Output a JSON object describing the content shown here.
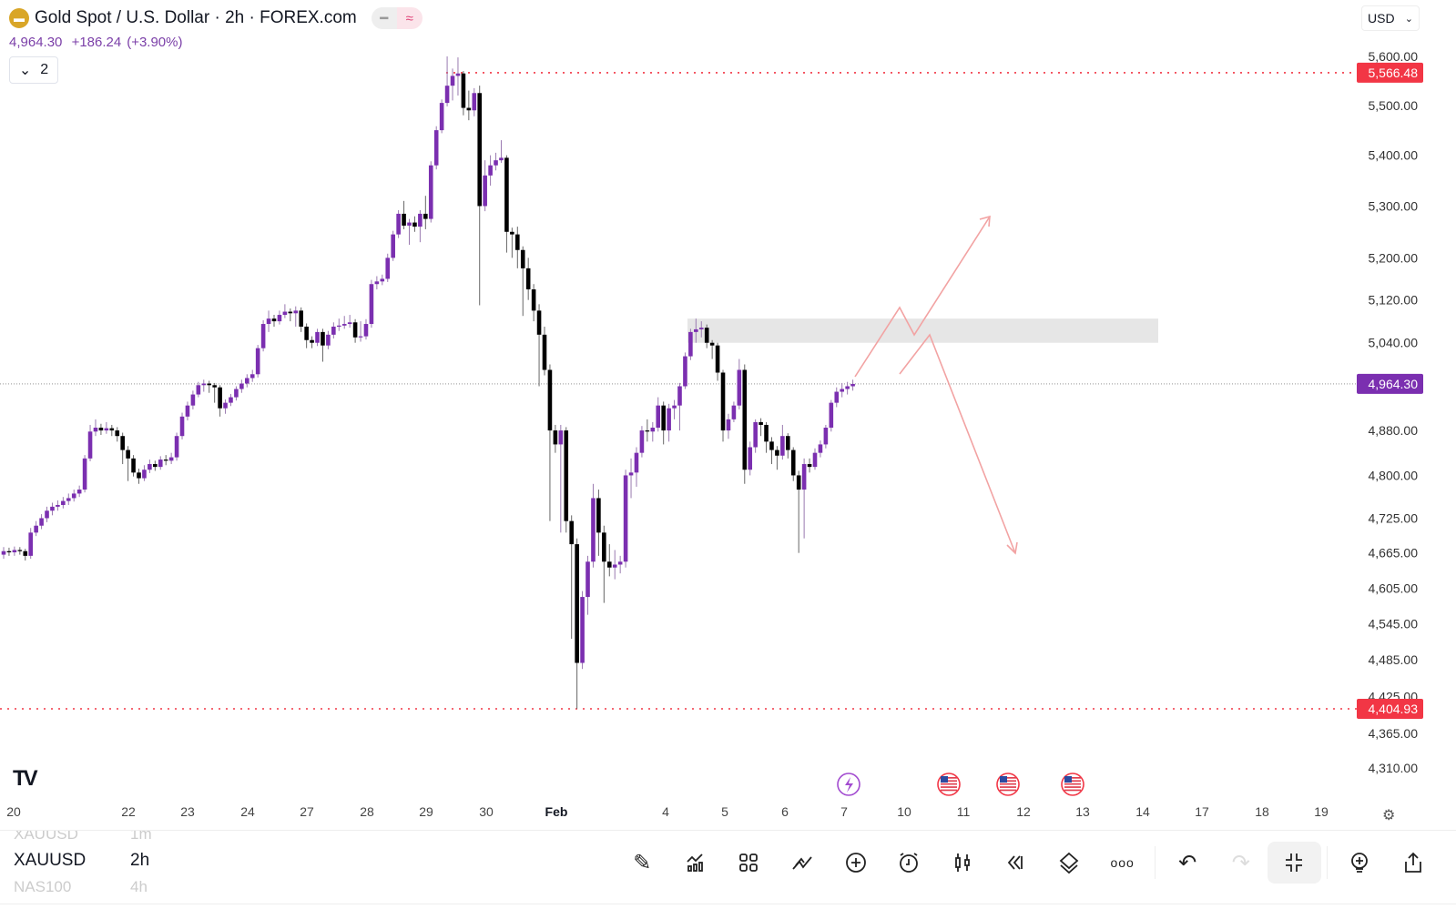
{
  "header": {
    "title": "Gold Spot / U.S. Dollar · 2h · FOREX.com",
    "last_price": "4,964.30",
    "change": "+186.24",
    "change_pct": "(+3.90%)",
    "indicators_collapsed_count": "2",
    "currency": "USD"
  },
  "price_axis": {
    "ticks": [
      "5,600.00",
      "5,500.00",
      "5,400.00",
      "5,300.00",
      "5,200.00",
      "5,120.00",
      "5,040.00",
      "4,880.00",
      "4,800.00",
      "4,725.00",
      "4,665.00",
      "4,605.00",
      "4,545.00",
      "4,485.00",
      "4,425.00",
      "4,365.00",
      "4,310.00"
    ],
    "scale": "log",
    "high_marker": "5,566.48",
    "low_marker": "4,404.93",
    "current_marker": "4,964.30"
  },
  "time_axis": {
    "ticks": [
      "20",
      "22",
      "23",
      "24",
      "27",
      "28",
      "29",
      "30",
      "Feb",
      "4",
      "5",
      "6",
      "7",
      "10",
      "11",
      "12",
      "13",
      "14",
      "17",
      "18",
      "19"
    ]
  },
  "colors": {
    "up": "#7b2fb0",
    "down": "#000000",
    "marker_red": "#f23645",
    "marker_current": "#7b2fb0",
    "drawing": "#f2a3a3",
    "zone": "#e6e6e6"
  },
  "chart_data": {
    "type": "candlestick",
    "symbol": "XAUUSD",
    "interval": "2h",
    "ohlc": [
      [
        4662,
        4675,
        4655,
        4668
      ],
      [
        4668,
        4674,
        4660,
        4666
      ],
      [
        4666,
        4676,
        4660,
        4670
      ],
      [
        4670,
        4675,
        4662,
        4668
      ],
      [
        4668,
        4672,
        4652,
        4660
      ],
      [
        4660,
        4708,
        4655,
        4700
      ],
      [
        4700,
        4720,
        4694,
        4712
      ],
      [
        4712,
        4732,
        4706,
        4725
      ],
      [
        4725,
        4745,
        4718,
        4738
      ],
      [
        4738,
        4752,
        4730,
        4745
      ],
      [
        4745,
        4756,
        4738,
        4748
      ],
      [
        4748,
        4762,
        4742,
        4755
      ],
      [
        4755,
        4768,
        4748,
        4760
      ],
      [
        4760,
        4775,
        4754,
        4768
      ],
      [
        4768,
        4782,
        4762,
        4775
      ],
      [
        4775,
        4836,
        4770,
        4830
      ],
      [
        4830,
        4890,
        4825,
        4878
      ],
      [
        4878,
        4900,
        4870,
        4885
      ],
      [
        4885,
        4892,
        4872,
        4880
      ],
      [
        4880,
        4895,
        4874,
        4884
      ],
      [
        4884,
        4890,
        4870,
        4880
      ],
      [
        4880,
        4886,
        4860,
        4870
      ],
      [
        4870,
        4876,
        4820,
        4845
      ],
      [
        4845,
        4852,
        4790,
        4830
      ],
      [
        4830,
        4836,
        4798,
        4805
      ],
      [
        4805,
        4812,
        4785,
        4795
      ],
      [
        4795,
        4818,
        4790,
        4810
      ],
      [
        4810,
        4828,
        4804,
        4820
      ],
      [
        4820,
        4826,
        4808,
        4815
      ],
      [
        4815,
        4834,
        4810,
        4828
      ],
      [
        4828,
        4836,
        4818,
        4826
      ],
      [
        4826,
        4840,
        4820,
        4832
      ],
      [
        4832,
        4876,
        4826,
        4870
      ],
      [
        4870,
        4912,
        4864,
        4905
      ],
      [
        4905,
        4932,
        4898,
        4925
      ],
      [
        4925,
        4952,
        4918,
        4945
      ],
      [
        4945,
        4968,
        4940,
        4962
      ],
      [
        4962,
        4972,
        4950,
        4965
      ],
      [
        4965,
        4970,
        4948,
        4962
      ],
      [
        4962,
        4966,
        4930,
        4958
      ],
      [
        4958,
        4962,
        4905,
        4920
      ],
      [
        4920,
        4936,
        4910,
        4930
      ],
      [
        4930,
        4946,
        4924,
        4940
      ],
      [
        4940,
        4960,
        4934,
        4955
      ],
      [
        4955,
        4972,
        4948,
        4965
      ],
      [
        4965,
        4982,
        4958,
        4975
      ],
      [
        4975,
        4990,
        4968,
        4982
      ],
      [
        4982,
        5036,
        4976,
        5030
      ],
      [
        5030,
        5082,
        5024,
        5075
      ],
      [
        5075,
        5100,
        5060,
        5085
      ],
      [
        5085,
        5092,
        5070,
        5080
      ],
      [
        5080,
        5100,
        5074,
        5092
      ],
      [
        5092,
        5112,
        5086,
        5098
      ],
      [
        5098,
        5104,
        5080,
        5095
      ],
      [
        5095,
        5108,
        5070,
        5100
      ],
      [
        5100,
        5106,
        5060,
        5070
      ],
      [
        5070,
        5076,
        5030,
        5045
      ],
      [
        5045,
        5052,
        5030,
        5040
      ],
      [
        5040,
        5066,
        5034,
        5060
      ],
      [
        5060,
        5066,
        5005,
        5035
      ],
      [
        5035,
        5062,
        5028,
        5055
      ],
      [
        5055,
        5078,
        5048,
        5070
      ],
      [
        5070,
        5085,
        5062,
        5072
      ],
      [
        5072,
        5090,
        5066,
        5075
      ],
      [
        5075,
        5092,
        5068,
        5078
      ],
      [
        5078,
        5084,
        5040,
        5050
      ],
      [
        5050,
        5080,
        5042,
        5052
      ],
      [
        5052,
        5084,
        5046,
        5075
      ],
      [
        5075,
        5158,
        5068,
        5150
      ],
      [
        5150,
        5165,
        5140,
        5155
      ],
      [
        5155,
        5168,
        5148,
        5160
      ],
      [
        5160,
        5208,
        5154,
        5200
      ],
      [
        5200,
        5252,
        5194,
        5245
      ],
      [
        5245,
        5292,
        5238,
        5285
      ],
      [
        5285,
        5310,
        5255,
        5262
      ],
      [
        5262,
        5275,
        5225,
        5268
      ],
      [
        5268,
        5280,
        5250,
        5260
      ],
      [
        5260,
        5292,
        5230,
        5285
      ],
      [
        5285,
        5320,
        5255,
        5275
      ],
      [
        5275,
        5388,
        5268,
        5380
      ],
      [
        5380,
        5458,
        5372,
        5450
      ],
      [
        5450,
        5512,
        5444,
        5505
      ],
      [
        5505,
        5600,
        5498,
        5540
      ],
      [
        5540,
        5575,
        5510,
        5560
      ],
      [
        5560,
        5598,
        5520,
        5565
      ],
      [
        5565,
        5570,
        5480,
        5495
      ],
      [
        5495,
        5530,
        5470,
        5490
      ],
      [
        5490,
        5535,
        5478,
        5525
      ],
      [
        5525,
        5540,
        5110,
        5300
      ],
      [
        5300,
        5390,
        5290,
        5360
      ],
      [
        5360,
        5400,
        5340,
        5380
      ],
      [
        5380,
        5405,
        5370,
        5390
      ],
      [
        5390,
        5430,
        5385,
        5395
      ],
      [
        5395,
        5400,
        5210,
        5250
      ],
      [
        5250,
        5258,
        5200,
        5245
      ],
      [
        5245,
        5260,
        5180,
        5215
      ],
      [
        5215,
        5222,
        5090,
        5180
      ],
      [
        5180,
        5200,
        5120,
        5140
      ],
      [
        5140,
        5150,
        5080,
        5100
      ],
      [
        5100,
        5112,
        4960,
        5055
      ],
      [
        5055,
        5070,
        4980,
        4990
      ],
      [
        4990,
        5000,
        4720,
        4880
      ],
      [
        4880,
        4890,
        4840,
        4855
      ],
      [
        4855,
        4890,
        4700,
        4880
      ],
      [
        4880,
        4886,
        4700,
        4720
      ],
      [
        4720,
        4730,
        4520,
        4680
      ],
      [
        4680,
        4690,
        4405,
        4480
      ],
      [
        4480,
        4600,
        4470,
        4590
      ],
      [
        4590,
        4660,
        4560,
        4650
      ],
      [
        4650,
        4785,
        4640,
        4760
      ],
      [
        4760,
        4775,
        4660,
        4700
      ],
      [
        4700,
        4712,
        4580,
        4650
      ],
      [
        4650,
        4680,
        4625,
        4640
      ],
      [
        4640,
        4670,
        4620,
        4645
      ],
      [
        4645,
        4660,
        4630,
        4650
      ],
      [
        4650,
        4810,
        4640,
        4800
      ],
      [
        4800,
        4830,
        4760,
        4805
      ],
      [
        4805,
        4850,
        4780,
        4840
      ],
      [
        4840,
        4888,
        4832,
        4880
      ],
      [
        4880,
        4900,
        4860,
        4878
      ],
      [
        4878,
        4895,
        4860,
        4885
      ],
      [
        4885,
        4940,
        4878,
        4925
      ],
      [
        4925,
        4932,
        4855,
        4880
      ],
      [
        4880,
        4928,
        4860,
        4920
      ],
      [
        4920,
        4935,
        4900,
        4925
      ],
      [
        4925,
        4966,
        4880,
        4960
      ],
      [
        4960,
        5022,
        4955,
        5015
      ],
      [
        5015,
        5066,
        5008,
        5060
      ],
      [
        5060,
        5085,
        5040,
        5065
      ],
      [
        5065,
        5080,
        5050,
        5068
      ],
      [
        5068,
        5074,
        5030,
        5040
      ],
      [
        5040,
        5045,
        5010,
        5035
      ],
      [
        5035,
        5040,
        4970,
        4985
      ],
      [
        4985,
        4990,
        4860,
        4880
      ],
      [
        4880,
        4910,
        4865,
        4900
      ],
      [
        4900,
        4932,
        4895,
        4925
      ],
      [
        4925,
        5010,
        4918,
        4990
      ],
      [
        4990,
        5000,
        4785,
        4810
      ],
      [
        4810,
        4860,
        4800,
        4850
      ],
      [
        4850,
        4900,
        4840,
        4895
      ],
      [
        4895,
        4902,
        4870,
        4890
      ],
      [
        4890,
        4895,
        4840,
        4860
      ],
      [
        4860,
        4868,
        4820,
        4845
      ],
      [
        4845,
        4852,
        4810,
        4835
      ],
      [
        4835,
        4890,
        4828,
        4870
      ],
      [
        4870,
        4875,
        4830,
        4845
      ],
      [
        4845,
        4850,
        4790,
        4800
      ],
      [
        4800,
        4808,
        4665,
        4775
      ],
      [
        4775,
        4830,
        4690,
        4820
      ],
      [
        4820,
        4830,
        4805,
        4815
      ],
      [
        4815,
        4848,
        4810,
        4840
      ],
      [
        4840,
        4862,
        4832,
        4855
      ],
      [
        4855,
        4890,
        4848,
        4885
      ],
      [
        4885,
        4935,
        4878,
        4930
      ],
      [
        4930,
        4958,
        4922,
        4950
      ],
      [
        4950,
        4966,
        4940,
        4955
      ],
      [
        4955,
        4968,
        4945,
        4960
      ],
      [
        4960,
        4972,
        4952,
        4964.3
      ]
    ],
    "horizontal_lines": [
      5566.48,
      4404.93
    ],
    "zone": [
      5040,
      5085
    ]
  },
  "events": [
    "lightning-event-icon",
    "us-flag-icon",
    "us-flag-icon",
    "us-flag-icon"
  ],
  "symbol_picker": [
    {
      "symbol": "XAUUSD",
      "interval": "1m"
    },
    {
      "symbol": "XAUUSD",
      "interval": "2h"
    },
    {
      "symbol": "NAS100",
      "interval": "4h"
    }
  ],
  "toolbar": [
    "draw-icon",
    "indicators-icon",
    "layouts-icon",
    "trend-icon",
    "add-icon",
    "alert-icon",
    "chart-type-icon",
    "replay-icon",
    "layers-icon",
    "more-icon",
    "undo-icon",
    "redo-icon",
    "exit-fullscreen-icon",
    "add-idea-icon",
    "share-icon"
  ]
}
